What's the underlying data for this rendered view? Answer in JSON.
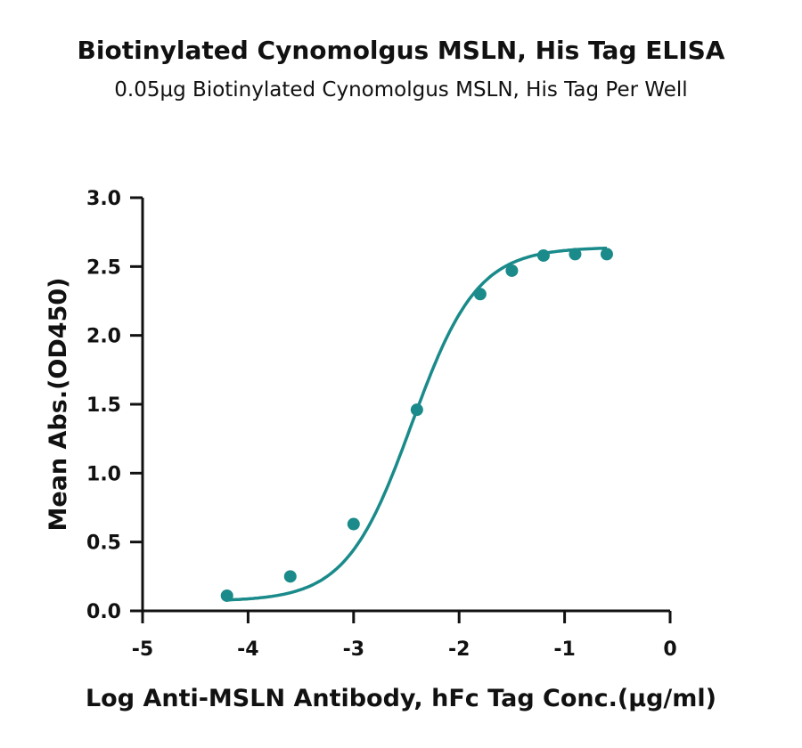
{
  "chart_data": {
    "type": "scatter",
    "title": "Biotinylated Cynomolgus MSLN, His Tag ELISA",
    "subtitle": "0.05μg Biotinylated Cynomolgus MSLN, His Tag Per Well",
    "xlabel": "Log Anti-MSLN Antibody, hFc Tag Conc.(μg/ml)",
    "ylabel": "Mean Abs.(OD450)",
    "xlim": [
      -5,
      0
    ],
    "ylim": [
      0,
      3.0
    ],
    "xticks": [
      "-5",
      "-4",
      "-3",
      "-2",
      "-1",
      "0"
    ],
    "yticks": [
      "0.0",
      "0.5",
      "1.0",
      "1.5",
      "2.0",
      "2.5",
      "3.0"
    ],
    "grid": false,
    "color": "#1a8a8a",
    "series": [
      {
        "points": [
          {
            "x": -4.2,
            "y": 0.11
          },
          {
            "x": -3.6,
            "y": 0.25
          },
          {
            "x": -3.0,
            "y": 0.63
          },
          {
            "x": -2.4,
            "y": 1.46
          },
          {
            "x": -1.8,
            "y": 2.3
          },
          {
            "x": -1.5,
            "y": 2.47
          },
          {
            "x": -1.2,
            "y": 2.58
          },
          {
            "x": -0.9,
            "y": 2.59
          },
          {
            "x": -0.6,
            "y": 2.59
          }
        ],
        "fit": {
          "model": "4PL",
          "bottom": 0.07,
          "top": 2.64,
          "logEC50": -2.45,
          "hill": 1.4
        }
      }
    ]
  }
}
